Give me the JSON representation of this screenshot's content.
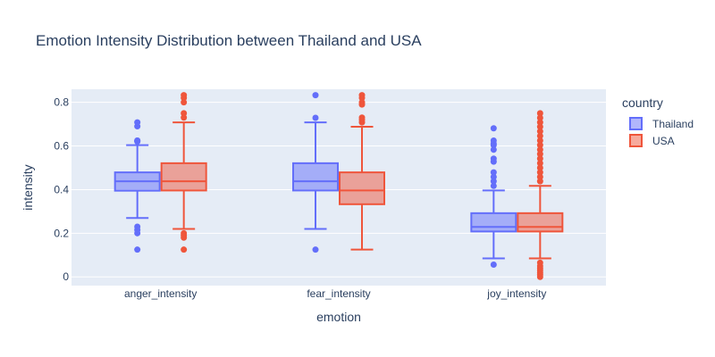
{
  "chart_data": {
    "type": "box",
    "title": "Emotion Intensity Distribution between Thailand and USA",
    "xlabel": "emotion",
    "ylabel": "intensity",
    "categories": [
      "anger_intensity",
      "fear_intensity",
      "joy_intensity"
    ],
    "ylim": [
      -0.04,
      0.86
    ],
    "yticks": [
      0,
      0.2,
      0.4,
      0.6,
      0.8
    ],
    "ytick_labels": [
      "0",
      "0.2",
      "0.4",
      "0.6",
      "0.8"
    ],
    "legend": {
      "title": "country",
      "position": "right"
    },
    "series": [
      {
        "name": "Thailand",
        "color": "#636efa",
        "fill": "rgba(99,110,250,0.5)",
        "boxes": [
          {
            "q1": 0.395,
            "median": 0.438,
            "q3": 0.479,
            "lower_fence": 0.27,
            "upper_fence": 0.604,
            "outliers": [
              0.708,
              0.69,
              0.625,
              0.625,
              0.62,
              0.23,
              0.215,
              0.2,
              0.125
            ]
          },
          {
            "q1": 0.396,
            "median": 0.438,
            "q3": 0.521,
            "lower_fence": 0.22,
            "upper_fence": 0.708,
            "outliers": [
              0.833,
              0.729,
              0.125
            ]
          },
          {
            "q1": 0.208,
            "median": 0.229,
            "q3": 0.292,
            "lower_fence": 0.085,
            "upper_fence": 0.396,
            "outliers": [
              0.681,
              0.625,
              0.611,
              0.604,
              0.583,
              0.542,
              0.528,
              0.479,
              0.458,
              0.438,
              0.417,
              0.056
            ]
          }
        ]
      },
      {
        "name": "USA",
        "color": "#ef553b",
        "fill": "rgba(239,85,59,0.5)",
        "boxes": [
          {
            "q1": 0.396,
            "median": 0.438,
            "q3": 0.521,
            "lower_fence": 0.22,
            "upper_fence": 0.708,
            "outliers": [
              0.833,
              0.82,
              0.8,
              0.75,
              0.73,
              0.2,
              0.19,
              0.18,
              0.125
            ]
          },
          {
            "q1": 0.333,
            "median": 0.396,
            "q3": 0.479,
            "lower_fence": 0.125,
            "upper_fence": 0.688,
            "outliers": [
              0.833,
              0.82,
              0.8,
              0.79,
              0.73,
              0.72,
              0.708
            ]
          },
          {
            "q1": 0.208,
            "median": 0.229,
            "q3": 0.292,
            "lower_fence": 0.085,
            "upper_fence": 0.417,
            "outliers": [
              0.75,
              0.729,
              0.708,
              0.688,
              0.667,
              0.646,
              0.625,
              0.604,
              0.583,
              0.563,
              0.542,
              0.521,
              0.5,
              0.479,
              0.458,
              0.438,
              0.065,
              0.05,
              0.04,
              0.03,
              0.02,
              0.01,
              0.0
            ]
          }
        ]
      }
    ]
  }
}
